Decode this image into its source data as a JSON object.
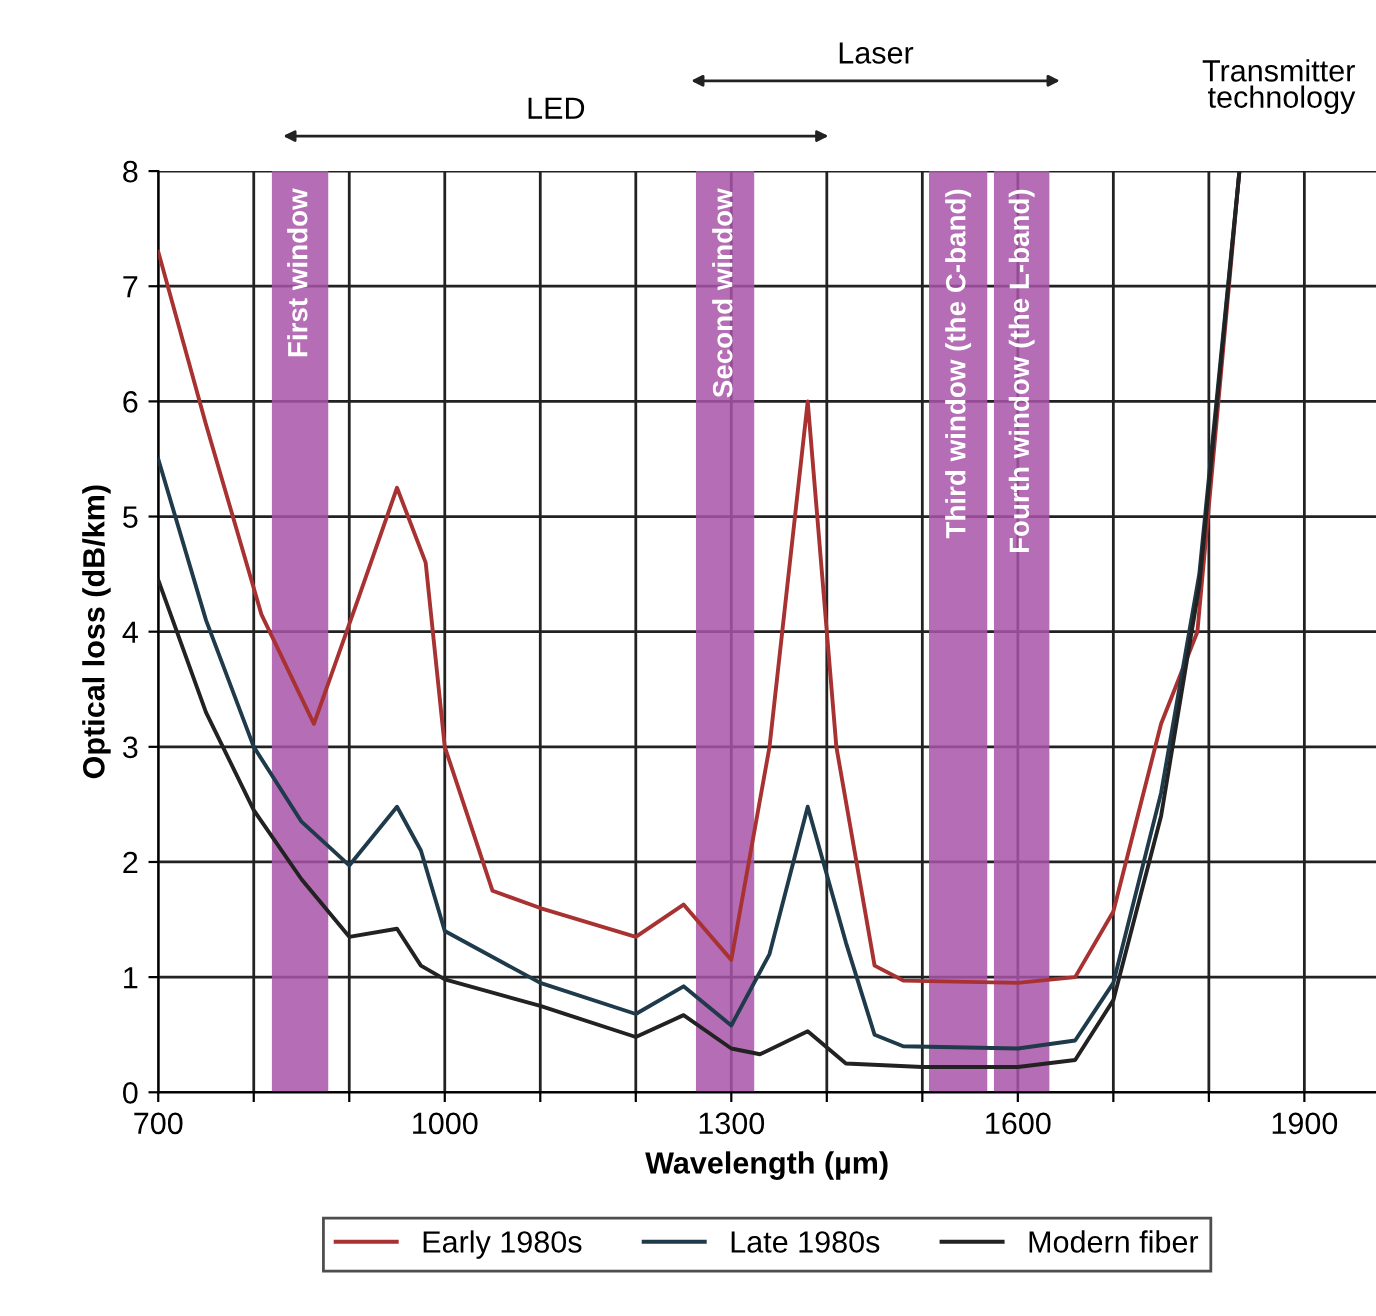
{
  "chart_data": {
    "type": "line",
    "xlabel": "Wavelength (µm)",
    "ylabel": "Optical loss (dB/km)",
    "xlim": [
      700,
      1975
    ],
    "xticks": [
      {
        "value": 700,
        "label": "700"
      },
      {
        "value": 800,
        "label": null
      },
      {
        "value": 900,
        "label": null
      },
      {
        "value": 1000,
        "label": "1000"
      },
      {
        "value": 1100,
        "label": null
      },
      {
        "value": 1200,
        "label": null
      },
      {
        "value": 1300,
        "label": "1300"
      },
      {
        "value": 1400,
        "label": null
      },
      {
        "value": 1500,
        "label": null
      },
      {
        "value": 1600,
        "label": "1600"
      },
      {
        "value": 1700,
        "label": null
      },
      {
        "value": 1800,
        "label": null
      },
      {
        "value": 1900,
        "label": "1900"
      }
    ],
    "ylim": [
      0,
      8
    ],
    "yticks": [
      0,
      1,
      2,
      3,
      4,
      5,
      6,
      7,
      8
    ],
    "grid": true,
    "legend": "bottom",
    "marker": "none",
    "line_style": "solid",
    "series": [
      {
        "name": "Early 1980s",
        "color": "#a83232",
        "x": [
          700,
          750,
          808,
          863,
          910,
          950,
          980,
          1000,
          1050,
          1100,
          1200,
          1250,
          1300,
          1340,
          1380,
          1410,
          1450,
          1480,
          1600,
          1660,
          1700,
          1750,
          1788,
          1832
        ],
        "values": [
          7.3,
          5.8,
          4.15,
          3.2,
          4.3,
          5.25,
          4.6,
          3.0,
          1.75,
          1.6,
          1.35,
          1.63,
          1.15,
          3.0,
          6.0,
          3.0,
          1.1,
          0.97,
          0.95,
          1.0,
          1.57,
          3.2,
          4.0,
          8.0
        ]
      },
      {
        "name": "Late 1980s",
        "color": "#1f3a4a",
        "x": [
          700,
          750,
          800,
          850,
          900,
          950,
          975,
          1000,
          1100,
          1200,
          1250,
          1300,
          1340,
          1380,
          1420,
          1450,
          1480,
          1600,
          1660,
          1700,
          1750,
          1790,
          1832
        ],
        "values": [
          5.5,
          4.1,
          3.0,
          2.35,
          1.97,
          2.48,
          2.1,
          1.4,
          0.95,
          0.68,
          0.92,
          0.58,
          1.2,
          2.48,
          1.3,
          0.5,
          0.4,
          0.38,
          0.45,
          0.95,
          2.6,
          4.5,
          8.0
        ]
      },
      {
        "name": "Modern fiber",
        "color": "#222222",
        "x": [
          700,
          750,
          800,
          850,
          900,
          950,
          975,
          1000,
          1100,
          1200,
          1250,
          1300,
          1330,
          1380,
          1420,
          1500,
          1600,
          1660,
          1700,
          1750,
          1790,
          1832
        ],
        "values": [
          4.45,
          3.3,
          2.45,
          1.85,
          1.35,
          1.42,
          1.1,
          0.98,
          0.75,
          0.48,
          0.67,
          0.38,
          0.33,
          0.53,
          0.25,
          0.22,
          0.22,
          0.28,
          0.8,
          2.4,
          4.4,
          8.0
        ]
      }
    ],
    "bands": [
      {
        "axis": "x",
        "from": 819,
        "to": 878,
        "label": "First window",
        "color": "#a855a8"
      },
      {
        "axis": "x",
        "from": 1263,
        "to": 1324,
        "label": "Second window",
        "color": "#a855a8"
      },
      {
        "axis": "x",
        "from": 1507,
        "to": 1568,
        "label": "Third window (the C-band)",
        "color": "#a855a8"
      },
      {
        "axis": "x",
        "from": 1575,
        "to": 1633,
        "label": "Fourth window (the L-band)",
        "color": "#a855a8"
      }
    ],
    "annotations": [
      "LED",
      "Laser",
      "Transmitter technology"
    ]
  }
}
